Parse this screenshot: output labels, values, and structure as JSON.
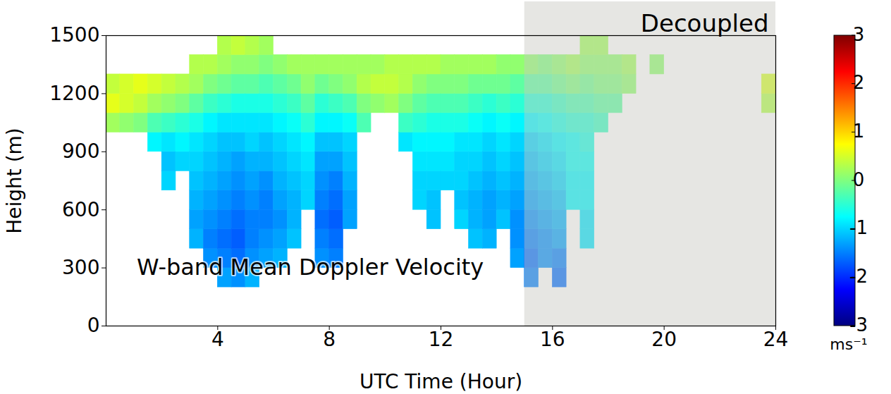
{
  "chart_data": {
    "type": "heatmap",
    "xlabel": "UTC Time (Hour)",
    "ylabel": "Height (m)",
    "xlim": [
      0,
      24
    ],
    "xticks": [
      4,
      8,
      12,
      16,
      20,
      24
    ],
    "ylim": [
      0,
      1500
    ],
    "yticks": [
      0,
      300,
      600,
      900,
      1200,
      1500
    ],
    "grid": false,
    "color": "jet",
    "annotations": [
      {
        "text": "W-band Mean Doppler Velocity",
        "x": 1.1,
        "y": 300
      }
    ],
    "shade": {
      "x": [
        15,
        24
      ],
      "label": "Decoupled"
    },
    "colorbar": {
      "range": [
        -3,
        3
      ],
      "ticks": [
        -3,
        -2,
        -1,
        0,
        1,
        2,
        3
      ],
      "label": "ms⁻¹"
    },
    "cells": {
      "x_bins": [
        0,
        0.5,
        1,
        1.5,
        2,
        2.5,
        3,
        3.5,
        4,
        4.5,
        5,
        5.5,
        6,
        6.5,
        7,
        7.5,
        8,
        8.5,
        9,
        9.5,
        10,
        10.5,
        11,
        11.5,
        12,
        12.5,
        13,
        13.5,
        14,
        14.5,
        15,
        15.5,
        16,
        16.5,
        17,
        17.5,
        18,
        18.5,
        19,
        19.5,
        20,
        20.5,
        21,
        21.5,
        22,
        22.5,
        23,
        23.5,
        24
      ],
      "y_bins": [
        0,
        100,
        200,
        300,
        400,
        500,
        600,
        700,
        800,
        900,
        1000,
        1100,
        1200,
        1300,
        1400,
        1500
      ],
      "values": [
        [
          null,
          null,
          null,
          null,
          null,
          null,
          null,
          null,
          null,
          null,
          0.2,
          0.6,
          0.4,
          null,
          null
        ],
        [
          null,
          null,
          null,
          null,
          null,
          null,
          null,
          null,
          null,
          null,
          0.1,
          0.5,
          0.5,
          null,
          null
        ],
        [
          null,
          null,
          null,
          null,
          null,
          null,
          null,
          null,
          null,
          null,
          0.0,
          0.4,
          0.6,
          null,
          null
        ],
        [
          null,
          null,
          null,
          null,
          null,
          null,
          null,
          null,
          null,
          -0.8,
          -0.3,
          0.2,
          0.5,
          null,
          null
        ],
        [
          null,
          null,
          null,
          null,
          null,
          null,
          null,
          -1.0,
          -1.1,
          -0.9,
          -0.4,
          0.1,
          0.4,
          null,
          null
        ],
        [
          null,
          null,
          null,
          null,
          null,
          null,
          null,
          null,
          -1.0,
          -0.8,
          -0.5,
          0.0,
          0.3,
          null,
          null
        ],
        [
          null,
          null,
          null,
          null,
          -1.2,
          -1.3,
          -1.2,
          -1.1,
          -1.0,
          -0.9,
          -0.6,
          -0.2,
          0.2,
          0.3,
          null
        ],
        [
          null,
          null,
          null,
          -1.4,
          -1.5,
          -1.4,
          -1.3,
          -1.2,
          -1.1,
          -1.0,
          -0.8,
          -0.4,
          0.0,
          0.3,
          null
        ],
        [
          null,
          null,
          -1.3,
          -1.5,
          -1.6,
          -1.5,
          -1.4,
          -1.3,
          -1.2,
          -1.1,
          -0.9,
          -0.5,
          -0.1,
          0.2,
          0.3
        ],
        [
          null,
          null,
          -1.4,
          -1.6,
          -1.7,
          -1.6,
          -1.5,
          -1.4,
          -1.3,
          -1.1,
          -0.9,
          -0.6,
          -0.2,
          0.1,
          0.4
        ],
        [
          null,
          null,
          -1.2,
          -1.4,
          -1.5,
          -1.5,
          -1.4,
          -1.3,
          -1.2,
          -1.0,
          -0.9,
          -0.6,
          -0.2,
          0.1,
          0.3
        ],
        [
          null,
          null,
          null,
          -1.3,
          -1.4,
          -1.5,
          -1.5,
          -1.4,
          -1.2,
          -1.1,
          -0.9,
          -0.6,
          -0.3,
          0.0,
          0.2
        ],
        [
          null,
          null,
          null,
          -1.2,
          -1.3,
          -1.4,
          -1.3,
          -1.2,
          -1.1,
          -1.0,
          -0.8,
          -0.5,
          -0.2,
          0.1,
          null
        ],
        [
          null,
          null,
          null,
          null,
          -1.1,
          -1.2,
          -1.2,
          -1.1,
          -1.0,
          -0.9,
          -0.7,
          -0.4,
          -0.1,
          0.2,
          null
        ],
        [
          null,
          null,
          null,
          null,
          null,
          null,
          -1.0,
          -1.0,
          -0.9,
          -0.8,
          -0.5,
          -0.2,
          0.1,
          0.2,
          null
        ],
        [
          null,
          null,
          null,
          -1.4,
          -1.5,
          -1.6,
          -1.5,
          -1.4,
          -1.3,
          -1.1,
          -0.8,
          -0.5,
          -0.1,
          0.2,
          null
        ],
        [
          null,
          null,
          null,
          -1.5,
          -1.6,
          -1.7,
          -1.6,
          -1.5,
          -1.3,
          -1.1,
          -0.8,
          -0.4,
          0.0,
          0.2,
          null
        ],
        [
          null,
          null,
          null,
          null,
          null,
          -1.3,
          -1.3,
          -1.2,
          -1.1,
          -1.0,
          -0.7,
          -0.3,
          0.1,
          0.2,
          null
        ],
        [
          null,
          null,
          null,
          null,
          null,
          null,
          null,
          null,
          null,
          null,
          -0.3,
          0.0,
          0.3,
          0.2,
          null
        ],
        [
          null,
          null,
          null,
          null,
          null,
          null,
          null,
          null,
          null,
          null,
          null,
          0.1,
          0.4,
          0.2,
          null
        ],
        [
          null,
          null,
          null,
          null,
          null,
          null,
          null,
          null,
          null,
          null,
          null,
          0.2,
          0.4,
          0.3,
          null
        ],
        [
          null,
          null,
          null,
          null,
          null,
          null,
          null,
          null,
          null,
          -0.9,
          -0.4,
          0.0,
          0.3,
          0.3,
          null
        ],
        [
          null,
          null,
          null,
          null,
          null,
          null,
          -1.0,
          -1.0,
          -0.9,
          -0.8,
          -0.5,
          -0.2,
          0.1,
          0.3,
          null
        ],
        [
          null,
          null,
          null,
          null,
          null,
          -1.1,
          -1.1,
          -1.0,
          -0.9,
          -0.8,
          -0.6,
          -0.3,
          0.0,
          0.3,
          null
        ],
        [
          null,
          null,
          null,
          null,
          null,
          null,
          null,
          -1.0,
          -0.9,
          -0.8,
          -0.6,
          -0.3,
          0.0,
          0.2,
          null
        ],
        [
          null,
          null,
          null,
          null,
          null,
          -1.0,
          -1.1,
          -1.0,
          -1.0,
          -0.9,
          -0.6,
          -0.3,
          0.0,
          0.2,
          null
        ],
        [
          null,
          null,
          null,
          null,
          -1.1,
          -1.2,
          -1.2,
          -1.1,
          -1.0,
          -0.9,
          -0.7,
          -0.4,
          -0.1,
          0.2,
          null
        ],
        [
          null,
          null,
          null,
          null,
          -1.2,
          -1.3,
          -1.3,
          -1.2,
          -1.1,
          -1.0,
          -0.8,
          -0.5,
          -0.1,
          0.2,
          null
        ],
        [
          null,
          null,
          null,
          null,
          null,
          -1.1,
          -1.2,
          -1.1,
          -1.0,
          -0.9,
          -0.7,
          -0.4,
          -0.1,
          0.1,
          null
        ],
        [
          null,
          null,
          null,
          -1.3,
          -1.4,
          -1.4,
          -1.3,
          -1.2,
          -1.1,
          -1.0,
          -0.8,
          -0.5,
          -0.2,
          0.1,
          null
        ],
        [
          null,
          null,
          -1.5,
          -1.6,
          -1.5,
          -1.4,
          -1.3,
          -1.2,
          -1.1,
          -1.0,
          -0.8,
          -0.5,
          -0.2,
          0.1,
          null
        ],
        [
          null,
          null,
          null,
          -1.4,
          -1.4,
          -1.3,
          -1.2,
          -1.1,
          -1.0,
          -0.9,
          -0.7,
          -0.5,
          -0.2,
          0.0,
          null
        ],
        [
          null,
          null,
          -1.6,
          -1.5,
          -1.3,
          -1.2,
          -1.1,
          -1.0,
          -0.9,
          -0.8,
          -0.6,
          -0.4,
          -0.1,
          0.1,
          null
        ],
        [
          null,
          null,
          null,
          null,
          null,
          null,
          -0.8,
          -0.8,
          -0.7,
          -0.7,
          -0.5,
          -0.3,
          0.0,
          0.2,
          null
        ],
        [
          null,
          null,
          null,
          null,
          -0.9,
          -0.9,
          -0.8,
          -0.8,
          -0.7,
          -0.6,
          -0.5,
          -0.3,
          -0.1,
          0.1,
          0.2
        ],
        [
          null,
          null,
          null,
          null,
          null,
          null,
          null,
          null,
          null,
          null,
          -0.4,
          -0.2,
          0.0,
          0.1,
          0.2
        ],
        [
          null,
          null,
          null,
          null,
          null,
          null,
          null,
          null,
          null,
          null,
          null,
          -0.2,
          0.0,
          0.1,
          null
        ],
        [
          null,
          null,
          null,
          null,
          null,
          null,
          null,
          null,
          null,
          null,
          null,
          null,
          0.1,
          0.2,
          null
        ],
        [
          null,
          null,
          null,
          null,
          null,
          null,
          null,
          null,
          null,
          null,
          null,
          null,
          null,
          null,
          null
        ],
        [
          null,
          null,
          null,
          null,
          null,
          null,
          null,
          null,
          null,
          null,
          null,
          null,
          null,
          0.1,
          null
        ],
        [
          null,
          null,
          null,
          null,
          null,
          null,
          null,
          null,
          null,
          null,
          null,
          null,
          null,
          null,
          null
        ],
        [
          null,
          null,
          null,
          null,
          null,
          null,
          null,
          null,
          null,
          null,
          null,
          null,
          null,
          null,
          null
        ],
        [
          null,
          null,
          null,
          null,
          null,
          null,
          null,
          null,
          null,
          null,
          null,
          null,
          null,
          null,
          null
        ],
        [
          null,
          null,
          null,
          null,
          null,
          null,
          null,
          null,
          null,
          null,
          null,
          null,
          null,
          null,
          null
        ],
        [
          null,
          null,
          null,
          null,
          null,
          null,
          null,
          null,
          null,
          null,
          null,
          null,
          null,
          null,
          null
        ],
        [
          null,
          null,
          null,
          null,
          null,
          null,
          null,
          null,
          null,
          null,
          null,
          null,
          null,
          null,
          null
        ],
        [
          null,
          null,
          null,
          null,
          null,
          null,
          null,
          null,
          null,
          null,
          null,
          null,
          null,
          null,
          null
        ],
        [
          null,
          null,
          null,
          null,
          null,
          null,
          null,
          null,
          null,
          null,
          null,
          0.3,
          0.5,
          null,
          null
        ]
      ]
    }
  }
}
